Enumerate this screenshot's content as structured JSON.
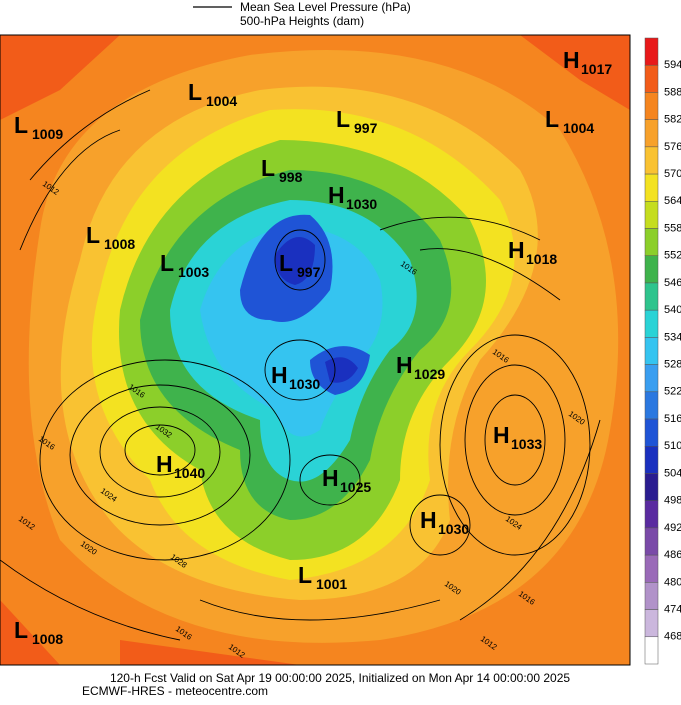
{
  "legend": {
    "lines": [
      "Mean Sea Level Pressure (hPa)",
      "500-hPa Heights (dam)"
    ]
  },
  "colorbar": {
    "ticks": [
      594,
      588,
      582,
      576,
      570,
      564,
      558,
      552,
      546,
      540,
      534,
      528,
      522,
      516,
      510,
      504,
      498,
      492,
      486,
      480,
      474,
      468
    ],
    "colors": [
      "#e8191a",
      "#f25c19",
      "#f5851f",
      "#f7a12b",
      "#f9c232",
      "#f3e221",
      "#c5dd1f",
      "#8ccf2a",
      "#3fb34c",
      "#2ec48d",
      "#2ad3d6",
      "#35c4f0",
      "#3a9ef0",
      "#2b78e0",
      "#1f54d6",
      "#1a30bf",
      "#2a1c90",
      "#5a2ba0",
      "#7a4aa8",
      "#9a6ab8",
      "#b192c9",
      "#cbb7dd",
      "#ffffff"
    ]
  },
  "centers": [
    {
      "type": "H",
      "value": 1017
    },
    {
      "type": "L",
      "value": 1004
    },
    {
      "type": "L",
      "value": 1009
    },
    {
      "type": "L",
      "value": 997
    },
    {
      "type": "L",
      "value": 1004
    },
    {
      "type": "L",
      "value": 998
    },
    {
      "type": "H",
      "value": 1030
    },
    {
      "type": "L",
      "value": 1008
    },
    {
      "type": "H",
      "value": 1018
    },
    {
      "type": "L",
      "value": 1003
    },
    {
      "type": "L",
      "value": 997
    },
    {
      "type": "H",
      "value": 1029
    },
    {
      "type": "H",
      "value": 1030
    },
    {
      "type": "H",
      "value": 1033
    },
    {
      "type": "H",
      "value": 1040
    },
    {
      "type": "H",
      "value": 1025
    },
    {
      "type": "H",
      "value": 1030
    },
    {
      "type": "L",
      "value": 1001
    },
    {
      "type": "L",
      "value": 1008
    }
  ],
  "contour_labels": [
    1012,
    1016,
    1016,
    1012,
    1032,
    1024,
    1028,
    1020,
    1016,
    1016,
    1020,
    1024,
    1020,
    1016,
    1012,
    1012,
    1016
  ],
  "footer": {
    "line1": "120-h Fcst Valid on Sat Apr 19 00:00:00 2025, Initialized on Mon Apr 14 00:00:00 2025",
    "line2": "ECMWF-HRES  - meteocentre.com"
  }
}
